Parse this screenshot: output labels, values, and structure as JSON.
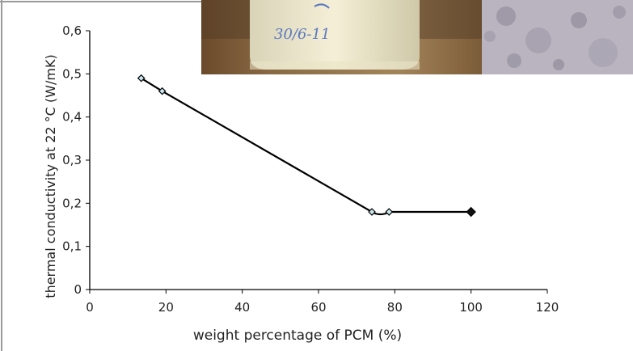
{
  "photos": {
    "left": {
      "description": "photo-jar",
      "caption": "30/6-11"
    },
    "right": {
      "description": "photo-material-surface"
    }
  },
  "chart_data": {
    "type": "line",
    "title": "",
    "xlabel": "weight percentage of PCM (%)",
    "ylabel": "thermal conductivity at 22 °C (W/mK)",
    "xlim": [
      0,
      120
    ],
    "ylim": [
      0,
      0.6
    ],
    "x_ticks": [
      "0",
      "20",
      "40",
      "60",
      "80",
      "100",
      "120"
    ],
    "y_ticks": [
      "0",
      "0,1",
      "0,2",
      "0,3",
      "0,4",
      "0,5",
      "0,6"
    ],
    "grid": false,
    "legend": "none",
    "series": [
      {
        "x": [
          13.5,
          19,
          74,
          78.5,
          100
        ],
        "y": [
          0.49,
          0.46,
          0.18,
          0.18,
          0.18
        ],
        "markers": [
          "light",
          "light",
          "light",
          "light",
          "dark"
        ]
      }
    ],
    "colors": {
      "line": "#000000",
      "marker_fill_light": "#c9e7f0",
      "marker_fill_dark": "#111111",
      "axis": "#000000"
    }
  }
}
